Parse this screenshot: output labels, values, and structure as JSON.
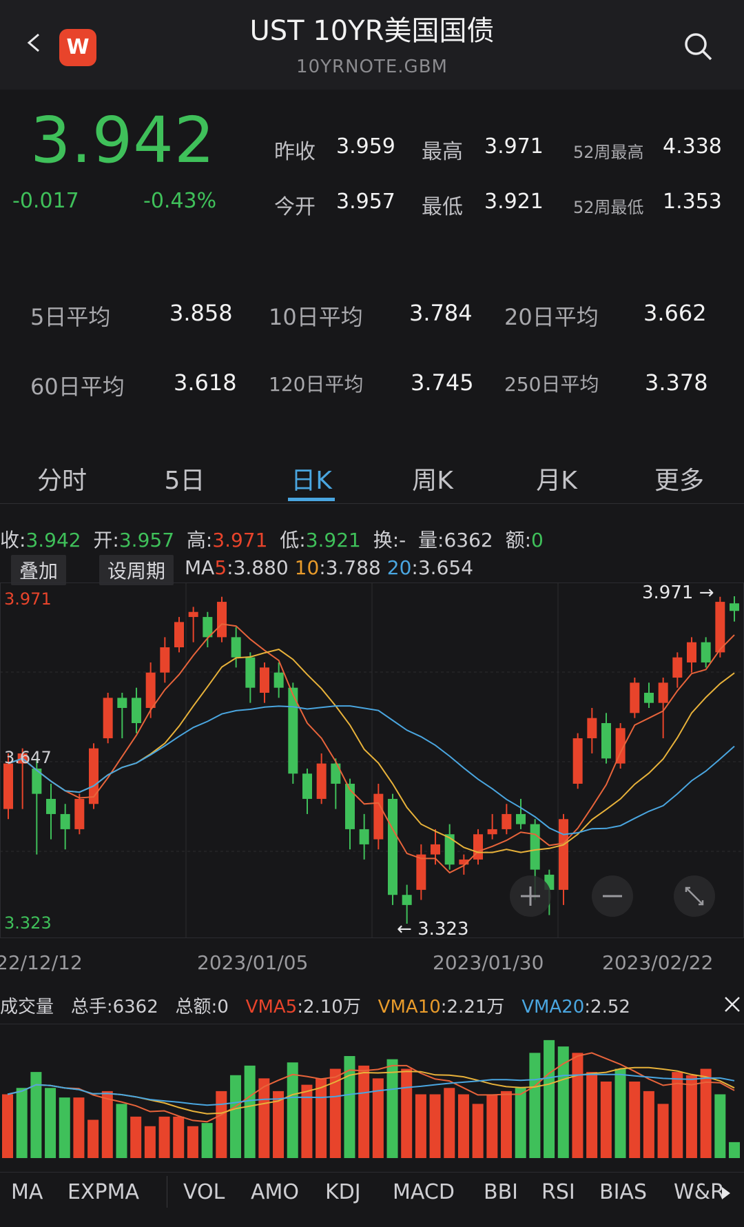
{
  "header": {
    "title": "UST 10YR美国国债",
    "subtitle": "10YRNOTE.GBM",
    "logo_letter": "W"
  },
  "quote": {
    "price": "3.942",
    "change": "-0.017",
    "change_pct": "-0.43%",
    "prev_close_label": "昨收",
    "prev_close": "3.959",
    "high_label": "最高",
    "high": "3.971",
    "wk52_high_label": "52周最高",
    "wk52_high": "4.338",
    "open_label": "今开",
    "open": "3.957",
    "low_label": "最低",
    "low": "3.921",
    "wk52_low_label": "52周最低",
    "wk52_low": "1.353"
  },
  "averages": [
    {
      "label": "5日平均",
      "value": "3.858"
    },
    {
      "label": "10日平均",
      "value": "3.784"
    },
    {
      "label": "20日平均",
      "value": "3.662"
    },
    {
      "label": "60日平均",
      "value": "3.618"
    },
    {
      "label": "120日平均",
      "value": "3.745"
    },
    {
      "label": "250日平均",
      "value": "3.378"
    }
  ],
  "tabs": [
    "分时",
    "5日",
    "日K",
    "周K",
    "月K",
    "更多"
  ],
  "active_tab": "日K",
  "info_bar": {
    "close_label": "收:",
    "close": "3.942",
    "open_label": "开:",
    "open": "3.957",
    "high_label": "高:",
    "high": "3.971",
    "low_label": "低:",
    "low": "3.921",
    "turnover_label": "换:",
    "turnover": "-",
    "volume_label": "量:",
    "volume": "6362",
    "amount_label": "额:",
    "amount": "0"
  },
  "chart_controls": {
    "overlay": "叠加",
    "set_period": "设周期",
    "ma_prefix": "MA",
    "ma5_key": "5",
    "ma5": ":3.880",
    "ma10_key": "10",
    "ma10": ":3.788",
    "ma20_key": "20",
    "ma20": ":3.654"
  },
  "price_axis": {
    "top": "3.971",
    "mid": "3.647",
    "bottom": "3.323"
  },
  "annotations": {
    "max": "3.971",
    "min": "3.323"
  },
  "dates": [
    "22/12/12",
    "2023/01/05",
    "2023/01/30",
    "2023/02/22"
  ],
  "volume_bar": {
    "title": "成交量",
    "total_hands_label": "总手:",
    "total_hands": "6362",
    "total_amount_label": "总额:",
    "total_amount": "0",
    "vma5_label": "VMA5",
    "vma5": ":2.10万",
    "vma10_label": "VMA10",
    "vma10": ":2.21万",
    "vma20_label": "VMA20",
    "vma20": ":2.52"
  },
  "indicators": [
    "MA",
    "EXPMA",
    "VOL",
    "AMO",
    "KDJ",
    "MACD",
    "BBI",
    "RSI",
    "BIAS",
    "W&R"
  ],
  "colors": {
    "up": "#e8442b",
    "down": "#3fc05a",
    "accent": "#4aa6e0",
    "ma10": "#e8b23a"
  },
  "chart_data": {
    "type": "candlestick",
    "y_range": [
      3.323,
      3.971
    ],
    "candles": [
      {
        "o": 3.55,
        "c": 3.64,
        "h": 3.66,
        "l": 3.53
      },
      {
        "o": 3.64,
        "c": 3.66,
        "h": 3.67,
        "l": 3.55
      },
      {
        "o": 3.63,
        "c": 3.58,
        "h": 3.65,
        "l": 3.46
      },
      {
        "o": 3.57,
        "c": 3.54,
        "h": 3.6,
        "l": 3.49
      },
      {
        "o": 3.54,
        "c": 3.51,
        "h": 3.56,
        "l": 3.47
      },
      {
        "o": 3.51,
        "c": 3.57,
        "h": 3.58,
        "l": 3.5
      },
      {
        "o": 3.56,
        "c": 3.67,
        "h": 3.68,
        "l": 3.55
      },
      {
        "o": 3.69,
        "c": 3.77,
        "h": 3.78,
        "l": 3.68
      },
      {
        "o": 3.77,
        "c": 3.75,
        "h": 3.78,
        "l": 3.69
      },
      {
        "o": 3.77,
        "c": 3.72,
        "h": 3.79,
        "l": 3.7
      },
      {
        "o": 3.75,
        "c": 3.82,
        "h": 3.84,
        "l": 3.73
      },
      {
        "o": 3.82,
        "c": 3.87,
        "h": 3.89,
        "l": 3.8
      },
      {
        "o": 3.87,
        "c": 3.92,
        "h": 3.93,
        "l": 3.86
      },
      {
        "o": 3.93,
        "c": 3.94,
        "h": 3.95,
        "l": 3.88
      },
      {
        "o": 3.93,
        "c": 3.89,
        "h": 3.94,
        "l": 3.87
      },
      {
        "o": 3.89,
        "c": 3.96,
        "h": 3.97,
        "l": 3.88
      },
      {
        "o": 3.89,
        "c": 3.85,
        "h": 3.91,
        "l": 3.83
      },
      {
        "o": 3.85,
        "c": 3.79,
        "h": 3.86,
        "l": 3.76
      },
      {
        "o": 3.78,
        "c": 3.83,
        "h": 3.84,
        "l": 3.76
      },
      {
        "o": 3.82,
        "c": 3.79,
        "h": 3.84,
        "l": 3.77
      },
      {
        "o": 3.79,
        "c": 3.62,
        "h": 3.8,
        "l": 3.6
      },
      {
        "o": 3.62,
        "c": 3.57,
        "h": 3.63,
        "l": 3.54
      },
      {
        "o": 3.57,
        "c": 3.64,
        "h": 3.66,
        "l": 3.56
      },
      {
        "o": 3.64,
        "c": 3.6,
        "h": 3.65,
        "l": 3.55
      },
      {
        "o": 3.6,
        "c": 3.51,
        "h": 3.61,
        "l": 3.47
      },
      {
        "o": 3.51,
        "c": 3.48,
        "h": 3.54,
        "l": 3.45
      },
      {
        "o": 3.49,
        "c": 3.58,
        "h": 3.6,
        "l": 3.47
      },
      {
        "o": 3.57,
        "c": 3.38,
        "h": 3.58,
        "l": 3.36
      },
      {
        "o": 3.38,
        "c": 3.36,
        "h": 3.4,
        "l": 3.323
      },
      {
        "o": 3.39,
        "c": 3.46,
        "h": 3.48,
        "l": 3.37
      },
      {
        "o": 3.46,
        "c": 3.48,
        "h": 3.51,
        "l": 3.44
      },
      {
        "o": 3.5,
        "c": 3.44,
        "h": 3.52,
        "l": 3.43
      },
      {
        "o": 3.44,
        "c": 3.45,
        "h": 3.46,
        "l": 3.42
      },
      {
        "o": 3.45,
        "c": 3.5,
        "h": 3.51,
        "l": 3.44
      },
      {
        "o": 3.5,
        "c": 3.51,
        "h": 3.54,
        "l": 3.49
      },
      {
        "o": 3.51,
        "c": 3.54,
        "h": 3.56,
        "l": 3.5
      },
      {
        "o": 3.54,
        "c": 3.52,
        "h": 3.57,
        "l": 3.51
      },
      {
        "o": 3.52,
        "c": 3.43,
        "h": 3.53,
        "l": 3.37
      },
      {
        "o": 3.42,
        "c": 3.39,
        "h": 3.43,
        "l": 3.34
      },
      {
        "o": 3.39,
        "c": 3.53,
        "h": 3.54,
        "l": 3.36
      },
      {
        "o": 3.6,
        "c": 3.69,
        "h": 3.7,
        "l": 3.59
      },
      {
        "o": 3.69,
        "c": 3.73,
        "h": 3.75,
        "l": 3.66
      },
      {
        "o": 3.72,
        "c": 3.65,
        "h": 3.74,
        "l": 3.64
      },
      {
        "o": 3.64,
        "c": 3.71,
        "h": 3.72,
        "l": 3.63
      },
      {
        "o": 3.74,
        "c": 3.8,
        "h": 3.81,
        "l": 3.73
      },
      {
        "o": 3.78,
        "c": 3.76,
        "h": 3.8,
        "l": 3.75
      },
      {
        "o": 3.76,
        "c": 3.8,
        "h": 3.81,
        "l": 3.69
      },
      {
        "o": 3.81,
        "c": 3.85,
        "h": 3.86,
        "l": 3.79
      },
      {
        "o": 3.84,
        "c": 3.88,
        "h": 3.89,
        "l": 3.82
      },
      {
        "o": 3.88,
        "c": 3.84,
        "h": 3.89,
        "l": 3.83
      },
      {
        "o": 3.86,
        "c": 3.96,
        "h": 3.97,
        "l": 3.85
      },
      {
        "o": 3.957,
        "c": 3.942,
        "h": 3.971,
        "l": 3.921
      }
    ],
    "volume_max": 40,
    "volumes": [
      {
        "v": 20,
        "up": true
      },
      {
        "v": 22,
        "up": false
      },
      {
        "v": 27,
        "up": false
      },
      {
        "v": 22,
        "up": false
      },
      {
        "v": 19,
        "up": false
      },
      {
        "v": 19,
        "up": true
      },
      {
        "v": 12,
        "up": true
      },
      {
        "v": 21,
        "up": true
      },
      {
        "v": 17,
        "up": false
      },
      {
        "v": 13,
        "up": true
      },
      {
        "v": 10,
        "up": true
      },
      {
        "v": 13,
        "up": true
      },
      {
        "v": 13,
        "up": true
      },
      {
        "v": 10,
        "up": true
      },
      {
        "v": 11,
        "up": false
      },
      {
        "v": 21,
        "up": true
      },
      {
        "v": 26,
        "up": false
      },
      {
        "v": 29,
        "up": false
      },
      {
        "v": 25,
        "up": true
      },
      {
        "v": 21,
        "up": true
      },
      {
        "v": 30,
        "up": false
      },
      {
        "v": 23,
        "up": true
      },
      {
        "v": 25,
        "up": true
      },
      {
        "v": 28,
        "up": true
      },
      {
        "v": 32,
        "up": false
      },
      {
        "v": 29,
        "up": true
      },
      {
        "v": 25,
        "up": true
      },
      {
        "v": 31,
        "up": false
      },
      {
        "v": 28,
        "up": true
      },
      {
        "v": 20,
        "up": true
      },
      {
        "v": 20,
        "up": true
      },
      {
        "v": 22,
        "up": true
      },
      {
        "v": 20,
        "up": true
      },
      {
        "v": 17,
        "up": true
      },
      {
        "v": 20,
        "up": true
      },
      {
        "v": 21,
        "up": true
      },
      {
        "v": 22,
        "up": false
      },
      {
        "v": 33,
        "up": false
      },
      {
        "v": 37,
        "up": false
      },
      {
        "v": 35,
        "up": false
      },
      {
        "v": 33,
        "up": true
      },
      {
        "v": 27,
        "up": true
      },
      {
        "v": 24,
        "up": true
      },
      {
        "v": 28,
        "up": false
      },
      {
        "v": 24,
        "up": true
      },
      {
        "v": 21,
        "up": true
      },
      {
        "v": 17,
        "up": true
      },
      {
        "v": 27,
        "up": true
      },
      {
        "v": 26,
        "up": true
      },
      {
        "v": 28,
        "up": true
      },
      {
        "v": 20,
        "up": false
      },
      {
        "v": 5,
        "up": false
      }
    ]
  }
}
